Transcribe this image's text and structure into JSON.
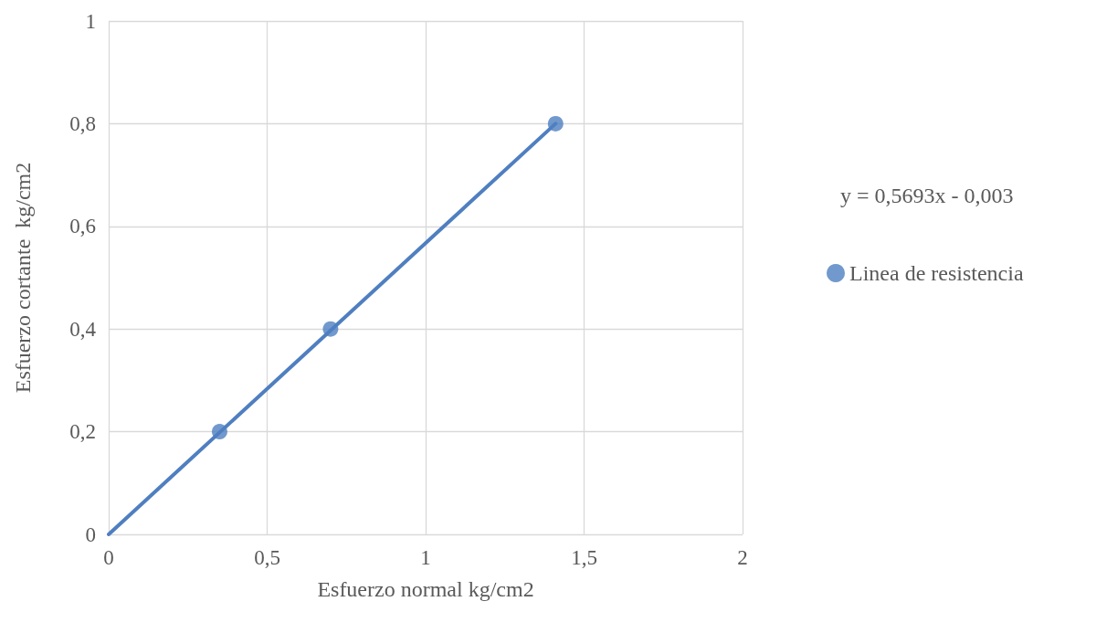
{
  "chart_data": {
    "type": "scatter",
    "xlabel": "Esfuerzo normal kg/cm2",
    "ylabel": "Esfuerzo cortante  kg/cm2",
    "annotations": [
      "y = 0,5693x - 0,003"
    ],
    "series": [
      {
        "name": "Linea de resistencia",
        "color": "#4f7fc0",
        "marker": "circle",
        "x": [
          0.35,
          0.7,
          1.41
        ],
        "values": [
          0.2,
          0.4,
          0.8
        ]
      },
      {
        "type": "line",
        "color": "#4f7fc0",
        "marker": "none",
        "line_style": "solid",
        "x": [
          0,
          1.41
        ],
        "values": [
          0,
          0.8
        ]
      }
    ],
    "xlim": [
      0,
      2
    ],
    "xticks": [
      0,
      {
        "value": 0.5,
        "label": "0,5"
      },
      1,
      {
        "value": 1.5,
        "label": "1,5"
      },
      2
    ],
    "ylim": [
      0,
      1
    ],
    "yticks": [
      0,
      {
        "value": 0.2,
        "label": "0,2"
      },
      {
        "value": 0.4,
        "label": "0,4"
      },
      {
        "value": 0.6,
        "label": "0,6"
      },
      {
        "value": 0.8,
        "label": "0,8"
      },
      1
    ],
    "grid": true,
    "legend": "right"
  }
}
